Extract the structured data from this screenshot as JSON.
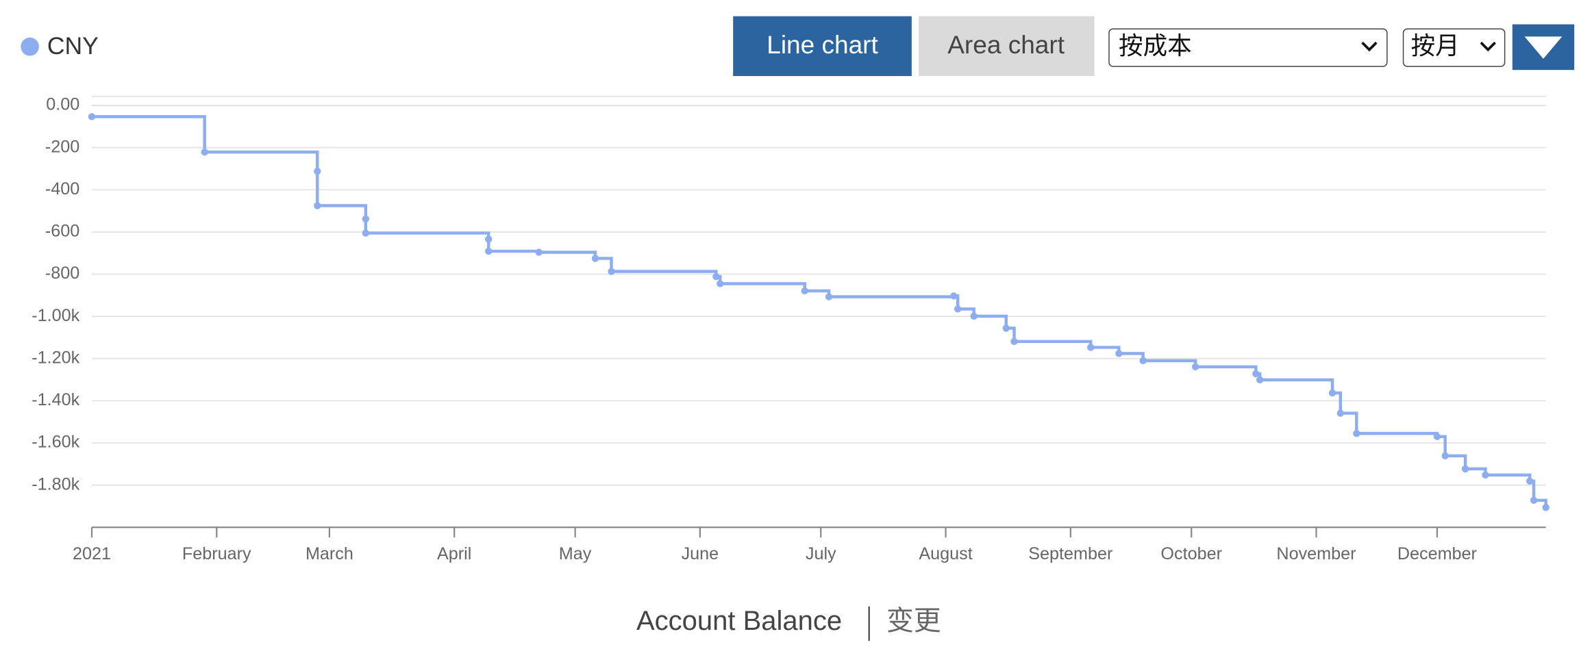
{
  "controls": {
    "line_button": "Line chart",
    "area_button": "Area chart",
    "conversion_select": "按成本",
    "interval_select": "按月"
  },
  "tabs": [
    "Account Balance",
    "变更"
  ],
  "chart_data": {
    "type": "line",
    "step": true,
    "grid": true,
    "series": [
      {
        "name": "CNY",
        "color": "#8caef0",
        "x": [
          0,
          28,
          56,
          56,
          68,
          68,
          98.5,
          98.5,
          111,
          125,
          129,
          155,
          156,
          177,
          183,
          214,
          215,
          219,
          227,
          229,
          248,
          255,
          261,
          274,
          289,
          290,
          308,
          310,
          314,
          334,
          336,
          341,
          346,
          357,
          358,
          361
        ],
        "values": [
          -53,
          -221,
          -312,
          -475,
          -538,
          -605,
          -634,
          -691,
          -696,
          -725,
          -787,
          -811,
          -845,
          -879,
          -907,
          -903,
          -965,
          -999,
          -1056,
          -1119,
          -1147,
          -1176,
          -1210,
          -1239,
          -1272,
          -1301,
          -1363,
          -1459,
          -1555,
          -1570,
          -1661,
          -1723,
          -1752,
          -1781,
          -1872,
          -1906
        ]
      }
    ],
    "xlim": [
      0,
      361
    ],
    "xticks": [
      {
        "value": 0,
        "label": "2021"
      },
      {
        "value": 31,
        "label": "February"
      },
      {
        "value": 59,
        "label": "March"
      },
      {
        "value": 90,
        "label": "April"
      },
      {
        "value": 120,
        "label": "May"
      },
      {
        "value": 151,
        "label": "June"
      },
      {
        "value": 181,
        "label": "July"
      },
      {
        "value": 212,
        "label": "August"
      },
      {
        "value": 243,
        "label": "September"
      },
      {
        "value": 273,
        "label": "October"
      },
      {
        "value": 304,
        "label": "November"
      },
      {
        "value": 334,
        "label": "December"
      }
    ],
    "ylim": [
      -2000,
      0
    ],
    "yticks": [
      {
        "value": 0,
        "label": "0.00"
      },
      -200,
      -400,
      -600,
      -800,
      {
        "value": -1000,
        "label": "-1.00k"
      },
      {
        "value": -1200,
        "label": "-1.20k"
      },
      {
        "value": -1400,
        "label": "-1.40k"
      },
      {
        "value": -1600,
        "label": "-1.60k"
      },
      {
        "value": -1800,
        "label": "-1.80k"
      }
    ]
  }
}
